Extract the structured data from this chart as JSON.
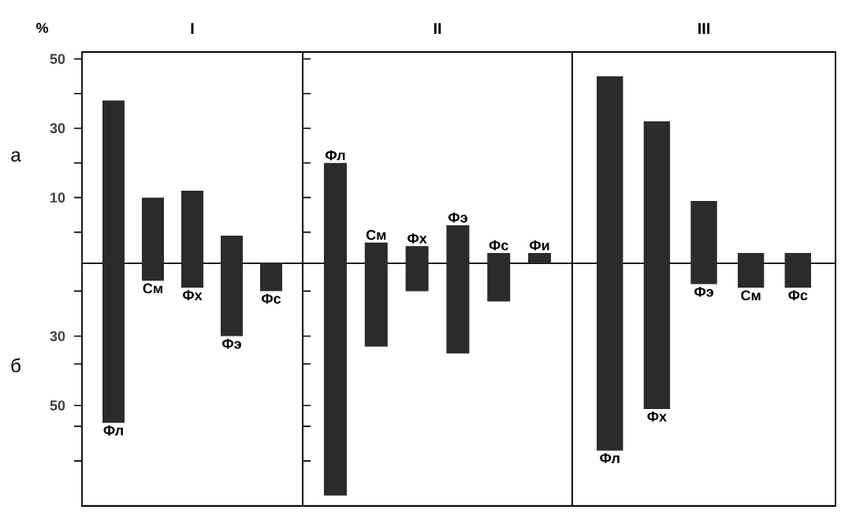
{
  "chart_data": [
    {
      "type": "bar",
      "title": "I",
      "ylabel": "%",
      "annotations": [
        "а",
        "б"
      ],
      "categories": [
        "Фл",
        "См",
        "Фх",
        "Фэ",
        "Фс"
      ],
      "base": [
        -55,
        -14,
        -16,
        -30,
        -17
      ],
      "values": [
        93,
        24,
        28,
        29,
        8
      ],
      "color": "#2b2b2b",
      "ylim": [
        -79,
        52
      ],
      "yticks": [
        50,
        30,
        10,
        {
          "value": 40,
          "label": null
        },
        {
          "value": 20,
          "label": null
        },
        {
          "value": 0,
          "label": null
        },
        {
          "value": -17,
          "label": null
        },
        {
          "value": -30,
          "label": "30"
        },
        {
          "value": -38,
          "label": null
        },
        {
          "value": -50,
          "label": "50"
        },
        {
          "value": -56,
          "label": null
        },
        {
          "value": -66,
          "label": null
        }
      ],
      "ref_lines": [
        {
          "axis": "y",
          "value": -9
        }
      ],
      "tick_labels": "y"
    },
    {
      "type": "bar",
      "title": "II",
      "categories": [
        "Фл",
        "См",
        "Фх",
        "Фэ",
        "Фс",
        "Фи"
      ],
      "base": [
        -76,
        -33,
        -17,
        -35,
        -20,
        -9
      ],
      "values": [
        96,
        30,
        13,
        37,
        14,
        3
      ],
      "color": "#2b2b2b",
      "ylim": [
        -79,
        52
      ],
      "ref_lines": [
        {
          "axis": "y",
          "value": -9
        }
      ],
      "tick_labels": false
    },
    {
      "type": "bar",
      "title": "III",
      "categories": [
        "Фл",
        "Фх",
        "Фэ",
        "См",
        "Фс"
      ],
      "base": [
        -63,
        -51,
        -15,
        -16,
        -16
      ],
      "values": [
        108,
        83,
        24,
        10,
        10
      ],
      "color": "#2b2b2b",
      "ylim": [
        -79,
        52
      ],
      "ref_lines": [
        {
          "axis": "y",
          "value": -9
        }
      ],
      "tick_labels": false
    }
  ]
}
